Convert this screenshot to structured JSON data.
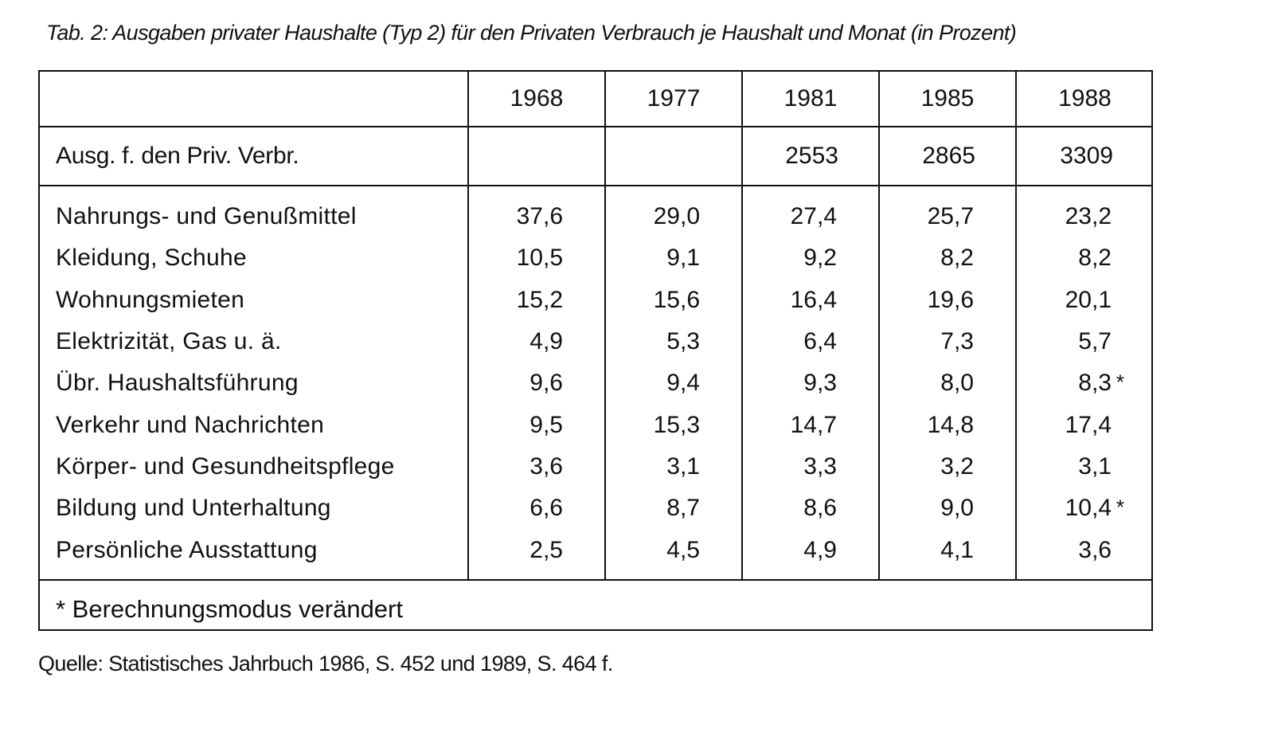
{
  "caption": "Tab. 2: Ausgaben privater Haushalte (Typ 2) für den Privaten Verbrauch je Haushalt und Monat (in Prozent)",
  "years": [
    "1968",
    "1977",
    "1981",
    "1985",
    "1988"
  ],
  "total": {
    "label": "Ausg. f. den Priv. Verbr.",
    "values": [
      "",
      "",
      "2553",
      "2865",
      "3309"
    ]
  },
  "rows": [
    {
      "label": "Nahrungs- und Genußmittel",
      "values": [
        "37,6",
        "29,0",
        "27,4",
        "25,7",
        "23,2"
      ],
      "marks": [
        "",
        "",
        "",
        "",
        ""
      ]
    },
    {
      "label": "Kleidung, Schuhe",
      "values": [
        "10,5",
        "9,1",
        "9,2",
        "8,2",
        "8,2"
      ],
      "marks": [
        "",
        "",
        "",
        "",
        ""
      ]
    },
    {
      "label": "Wohnungsmieten",
      "values": [
        "15,2",
        "15,6",
        "16,4",
        "19,6",
        "20,1"
      ],
      "marks": [
        "",
        "",
        "",
        "",
        ""
      ]
    },
    {
      "label": "Elektrizität, Gas u. ä.",
      "values": [
        "4,9",
        "5,3",
        "6,4",
        "7,3",
        "5,7"
      ],
      "marks": [
        "",
        "",
        "",
        "",
        ""
      ]
    },
    {
      "label": "Übr. Haushaltsführung",
      "values": [
        "9,6",
        "9,4",
        "9,3",
        "8,0",
        "8,3"
      ],
      "marks": [
        "",
        "",
        "",
        "",
        "*"
      ]
    },
    {
      "label": "Verkehr und Nachrichten",
      "values": [
        "9,5",
        "15,3",
        "14,7",
        "14,8",
        "17,4"
      ],
      "marks": [
        "",
        "",
        "",
        "",
        ""
      ]
    },
    {
      "label": "Körper- und Gesundheitspflege",
      "values": [
        "3,6",
        "3,1",
        "3,3",
        "3,2",
        "3,1"
      ],
      "marks": [
        "",
        "",
        "",
        "",
        ""
      ]
    },
    {
      "label": "Bildung und Unterhaltung",
      "values": [
        "6,6",
        "8,7",
        "8,6",
        "9,0",
        "10,4"
      ],
      "marks": [
        "",
        "",
        "",
        "",
        "*"
      ]
    },
    {
      "label": "Persönliche Ausstattung",
      "values": [
        "2,5",
        "4,5",
        "4,9",
        "4,1",
        "3,6"
      ],
      "marks": [
        "",
        "",
        "",
        "",
        ""
      ]
    }
  ],
  "footnote": "* Berechnungsmodus verändert",
  "source": "Quelle: Statistisches Jahrbuch 1986, S. 452 und 1989, S. 464 f."
}
